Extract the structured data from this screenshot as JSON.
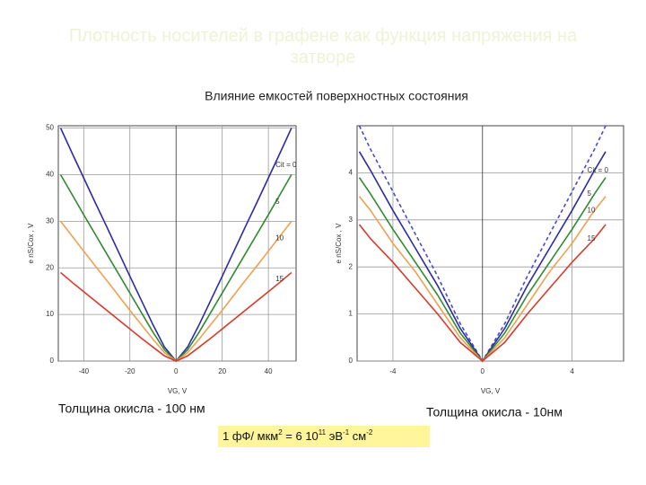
{
  "slide": {
    "title": "Плотность носителей в графене как функция напряжения на затворе",
    "subtitle": "Влияние емкостей поверхностных состояния",
    "caption_left": "Толщина окисла - 100 нм",
    "caption_right": "Толщина окисла - 10нм",
    "formula": [
      "1 фФ/ мкм",
      "2",
      " = 6 10",
      "11",
      " эВ",
      "-1",
      " см",
      "-2"
    ]
  },
  "chart_data": [
    {
      "type": "line",
      "x_label": "VG, V",
      "y_label": "e nS/Cox , V",
      "x": [
        -50,
        -45,
        -40,
        -35,
        -30,
        -25,
        -20,
        -15,
        -10,
        -5,
        0,
        5,
        10,
        15,
        20,
        25,
        30,
        35,
        40,
        45,
        50
      ],
      "xlim": [
        -51,
        52
      ],
      "ylim": [
        0,
        50.5
      ],
      "xticks": [
        -40,
        -20,
        0,
        20,
        40
      ],
      "yticks": [
        0,
        10,
        20,
        30,
        40,
        50
      ],
      "grid": true,
      "series": [
        {
          "name": "Cit = 0",
          "color": "#2b2ba8",
          "values": [
            50,
            44.6,
            39.3,
            34,
            28.8,
            23.5,
            18.2,
            13,
            7.8,
            3,
            0,
            3,
            7.8,
            13,
            18.2,
            23.5,
            28.8,
            34,
            39.3,
            44.6,
            50
          ]
        },
        {
          "name": "5",
          "color": "#2e8b2e",
          "values": [
            40,
            35.7,
            31.4,
            27.2,
            23,
            18.8,
            14.6,
            10.4,
            6.2,
            2.4,
            0,
            2.4,
            6.2,
            10.4,
            14.6,
            18.8,
            23,
            27.2,
            31.4,
            35.7,
            40
          ]
        },
        {
          "name": "10",
          "color": "#f0a050",
          "values": [
            30,
            26.8,
            23.6,
            20.4,
            17.3,
            14.1,
            10.9,
            7.8,
            4.7,
            1.8,
            0,
            1.8,
            4.7,
            7.8,
            10.9,
            14.1,
            17.3,
            20.4,
            23.6,
            26.8,
            30
          ]
        },
        {
          "name": "15",
          "color": "#d83a2a",
          "values": [
            19,
            16.9,
            14.9,
            12.9,
            10.9,
            8.9,
            6.9,
            4.9,
            3,
            1.1,
            0,
            1.1,
            3,
            4.9,
            6.9,
            8.9,
            10.9,
            12.9,
            14.9,
            16.9,
            19
          ]
        }
      ]
    },
    {
      "type": "line",
      "x_label": "VG, V",
      "y_label": "e nS/Cox , V",
      "x": [
        -5.5,
        -5,
        -4,
        -3,
        -2,
        -1,
        0,
        1,
        2,
        3,
        4,
        5,
        5.5
      ],
      "xlim": [
        -5.6,
        6.3
      ],
      "ylim": [
        0,
        5
      ],
      "xticks": [
        -4,
        0,
        4
      ],
      "yticks": [
        0,
        1,
        2,
        3,
        4
      ],
      "grid": true,
      "series": [
        {
          "color": "#4a4ad0",
          "dash": true,
          "values": [
            5,
            4.5,
            3.6,
            2.7,
            1.8,
            0.8,
            0,
            0.8,
            1.8,
            2.7,
            3.6,
            4.5,
            5
          ]
        },
        {
          "name": "Cit = 0",
          "color": "#2b2ba8",
          "values": [
            4.45,
            4.05,
            3.2,
            2.4,
            1.6,
            0.7,
            0,
            0.7,
            1.6,
            2.4,
            3.2,
            4.05,
            4.45
          ]
        },
        {
          "name": "5",
          "color": "#2e8b2e",
          "values": [
            3.9,
            3.55,
            2.8,
            2.1,
            1.4,
            0.6,
            0,
            0.6,
            1.4,
            2.1,
            2.8,
            3.55,
            3.9
          ]
        },
        {
          "name": "10",
          "color": "#f0a050",
          "values": [
            3.5,
            3.2,
            2.5,
            1.9,
            1.2,
            0.5,
            0,
            0.5,
            1.2,
            1.9,
            2.5,
            3.2,
            3.5
          ]
        },
        {
          "name": "15",
          "color": "#d83a2a",
          "values": [
            2.9,
            2.6,
            2.1,
            1.55,
            1,
            0.4,
            0,
            0.4,
            1,
            1.55,
            2.1,
            2.6,
            2.9
          ]
        }
      ]
    }
  ]
}
